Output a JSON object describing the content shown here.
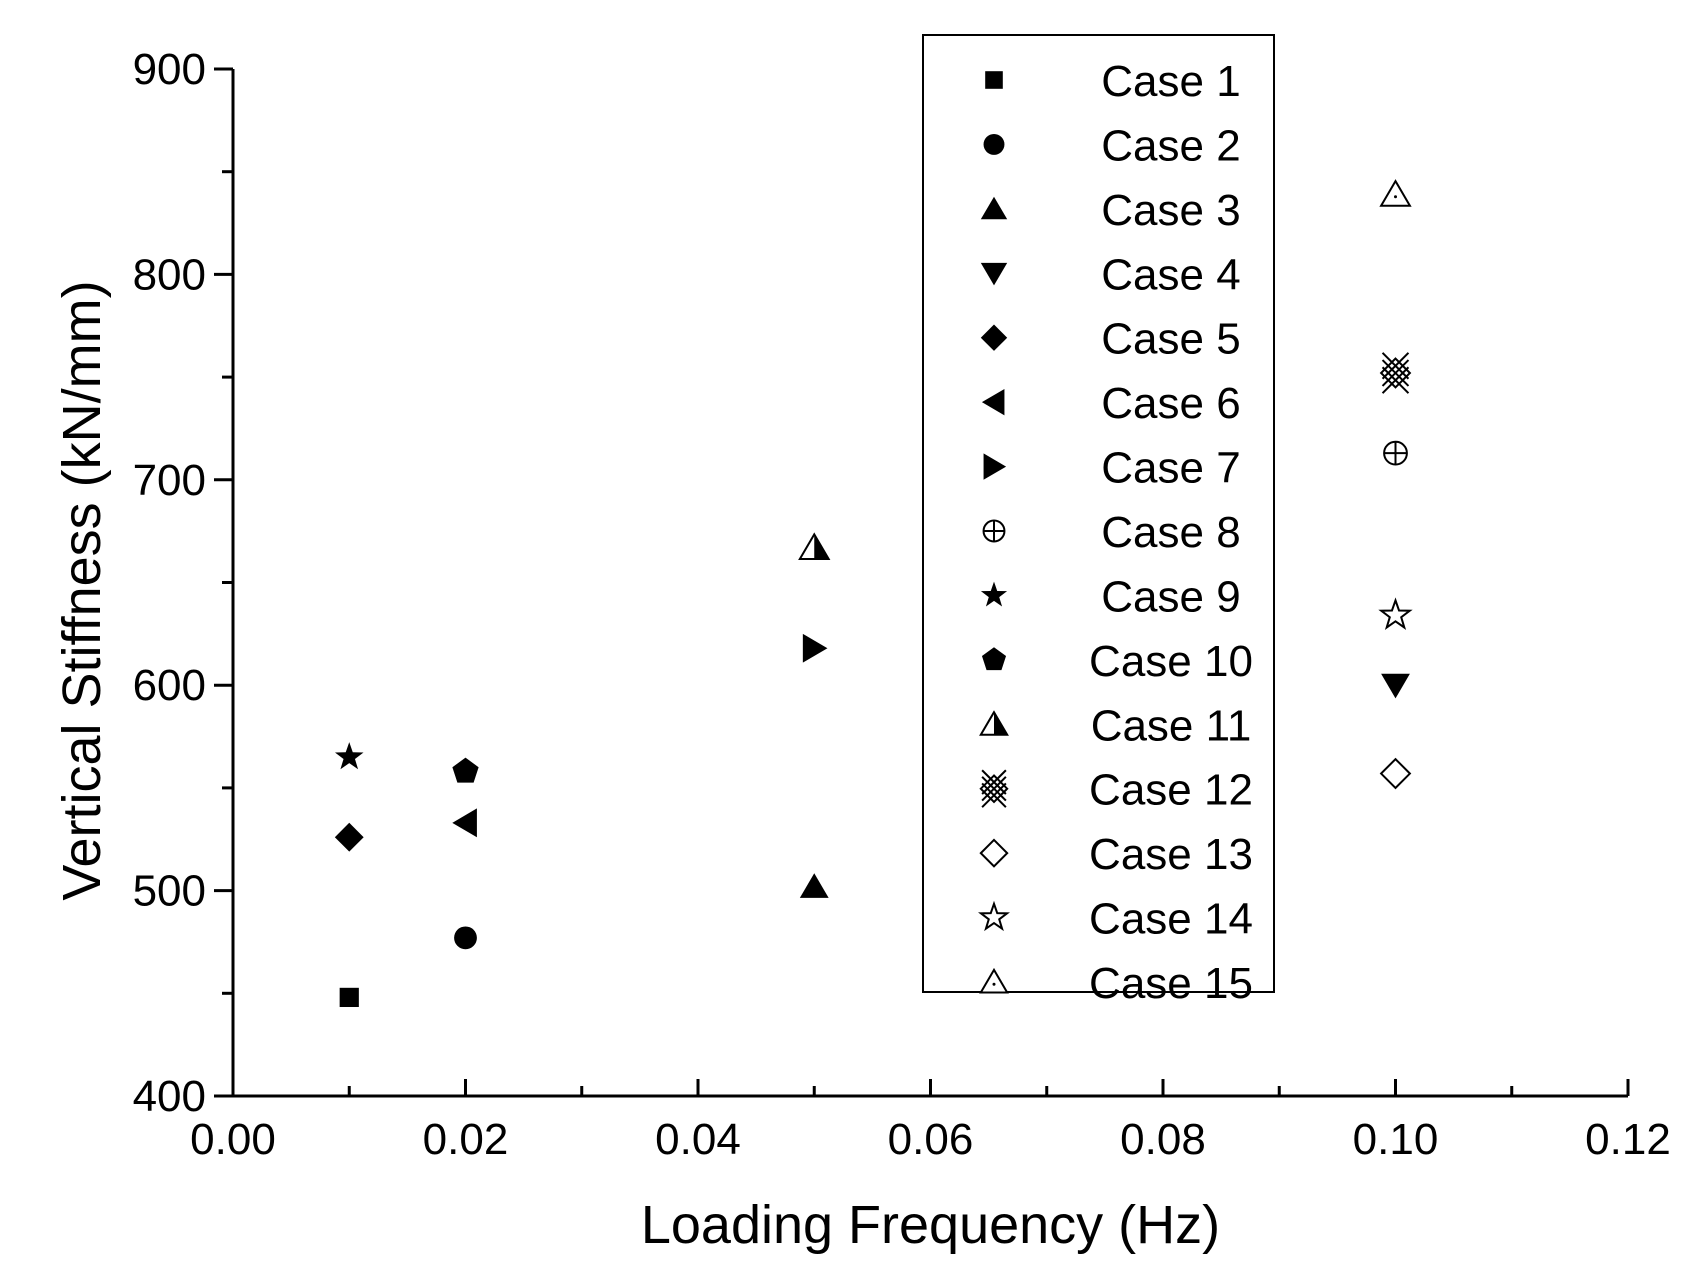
{
  "chart_data": {
    "type": "scatter",
    "title": "",
    "xlabel": "Loading Frequency (Hz)",
    "ylabel": "Vertical Stiffness (kN/mm)",
    "xlim": [
      0.0,
      0.12
    ],
    "ylim": [
      400,
      900
    ],
    "x_ticks": [
      "0.00",
      "0.02",
      "0.04",
      "0.06",
      "0.08",
      "0.10",
      "0.12"
    ],
    "y_ticks": [
      "400",
      "500",
      "600",
      "700",
      "800",
      "900"
    ],
    "x_tick_values": [
      0.0,
      0.02,
      0.04,
      0.06,
      0.08,
      0.1,
      0.12
    ],
    "y_tick_values": [
      400,
      500,
      600,
      700,
      800,
      900
    ],
    "legend_position": "top-right",
    "series": [
      {
        "name": "Case 1",
        "marker": "square-filled",
        "x": [
          0.01
        ],
        "y": [
          448
        ]
      },
      {
        "name": "Case 2",
        "marker": "circle-filled",
        "x": [
          0.02
        ],
        "y": [
          477
        ]
      },
      {
        "name": "Case 3",
        "marker": "triangle-up-filled",
        "x": [
          0.05
        ],
        "y": [
          502
        ]
      },
      {
        "name": "Case 4",
        "marker": "triangle-down-filled",
        "x": [
          0.1
        ],
        "y": [
          600
        ]
      },
      {
        "name": "Case 5",
        "marker": "diamond-filled",
        "x": [
          0.01
        ],
        "y": [
          526
        ]
      },
      {
        "name": "Case 6",
        "marker": "triangle-left-filled",
        "x": [
          0.02
        ],
        "y": [
          533
        ]
      },
      {
        "name": "Case 7",
        "marker": "triangle-right-filled",
        "x": [
          0.05
        ],
        "y": [
          618
        ]
      },
      {
        "name": "Case 8",
        "marker": "circle-plus",
        "x": [
          0.1
        ],
        "y": [
          713
        ]
      },
      {
        "name": "Case 9",
        "marker": "star-filled",
        "x": [
          0.01
        ],
        "y": [
          565
        ]
      },
      {
        "name": "Case 10",
        "marker": "pentagon-filled",
        "x": [
          0.02
        ],
        "y": [
          558
        ]
      },
      {
        "name": "Case 11",
        "marker": "triangle-half",
        "x": [
          0.05
        ],
        "y": [
          667
        ]
      },
      {
        "name": "Case 12",
        "marker": "diamond-cross",
        "x": [
          0.1
        ],
        "y": [
          752
        ]
      },
      {
        "name": "Case 13",
        "marker": "diamond-open",
        "x": [
          0.1
        ],
        "y": [
          557
        ]
      },
      {
        "name": "Case 14",
        "marker": "star-open",
        "x": [
          0.1
        ],
        "y": [
          634
        ]
      },
      {
        "name": "Case 15",
        "marker": "triangle-up-dot",
        "x": [
          0.1
        ],
        "y": [
          839
        ]
      }
    ]
  }
}
